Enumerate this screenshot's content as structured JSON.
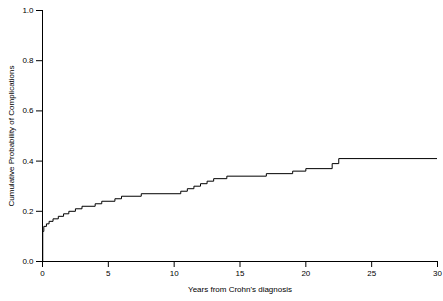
{
  "chart_data": {
    "type": "line",
    "x_label": "Years from Crohn's diagnosis",
    "y_label": "Cumulative Probability of Complications",
    "series": [
      {
        "name": null,
        "color": "#000000",
        "line_style": "step",
        "x": [
          0,
          0.02,
          0.1,
          0.3,
          0.5,
          0.8,
          1.2,
          1.6,
          2.0,
          2.5,
          3.0,
          4.0,
          4.5,
          5.5,
          6.0,
          7.5,
          10.5,
          11.0,
          11.5,
          12.0,
          12.5,
          13.0,
          14.0,
          17.0,
          19.0,
          20.0,
          22.0,
          22.5,
          30
        ],
        "values": [
          0.0,
          0.12,
          0.14,
          0.15,
          0.16,
          0.17,
          0.18,
          0.19,
          0.2,
          0.21,
          0.22,
          0.23,
          0.24,
          0.25,
          0.26,
          0.27,
          0.28,
          0.29,
          0.3,
          0.31,
          0.32,
          0.33,
          0.34,
          0.35,
          0.36,
          0.37,
          0.39,
          0.41,
          0.41
        ]
      }
    ],
    "xlim": [
      0,
      30
    ],
    "xticks": [
      0,
      5,
      10,
      15,
      20,
      25,
      30
    ],
    "ylim": [
      0,
      1.0
    ],
    "yticks": [
      {
        "value": 0,
        "label": "0.0"
      },
      {
        "value": 0.2,
        "label": "0.2"
      },
      {
        "value": 0.4,
        "label": "0.4"
      },
      {
        "value": 0.6,
        "label": "0.6"
      },
      {
        "value": 0.8,
        "label": "0.8"
      },
      {
        "value": 1.0,
        "label": "1.0"
      }
    ],
    "grid": false
  }
}
